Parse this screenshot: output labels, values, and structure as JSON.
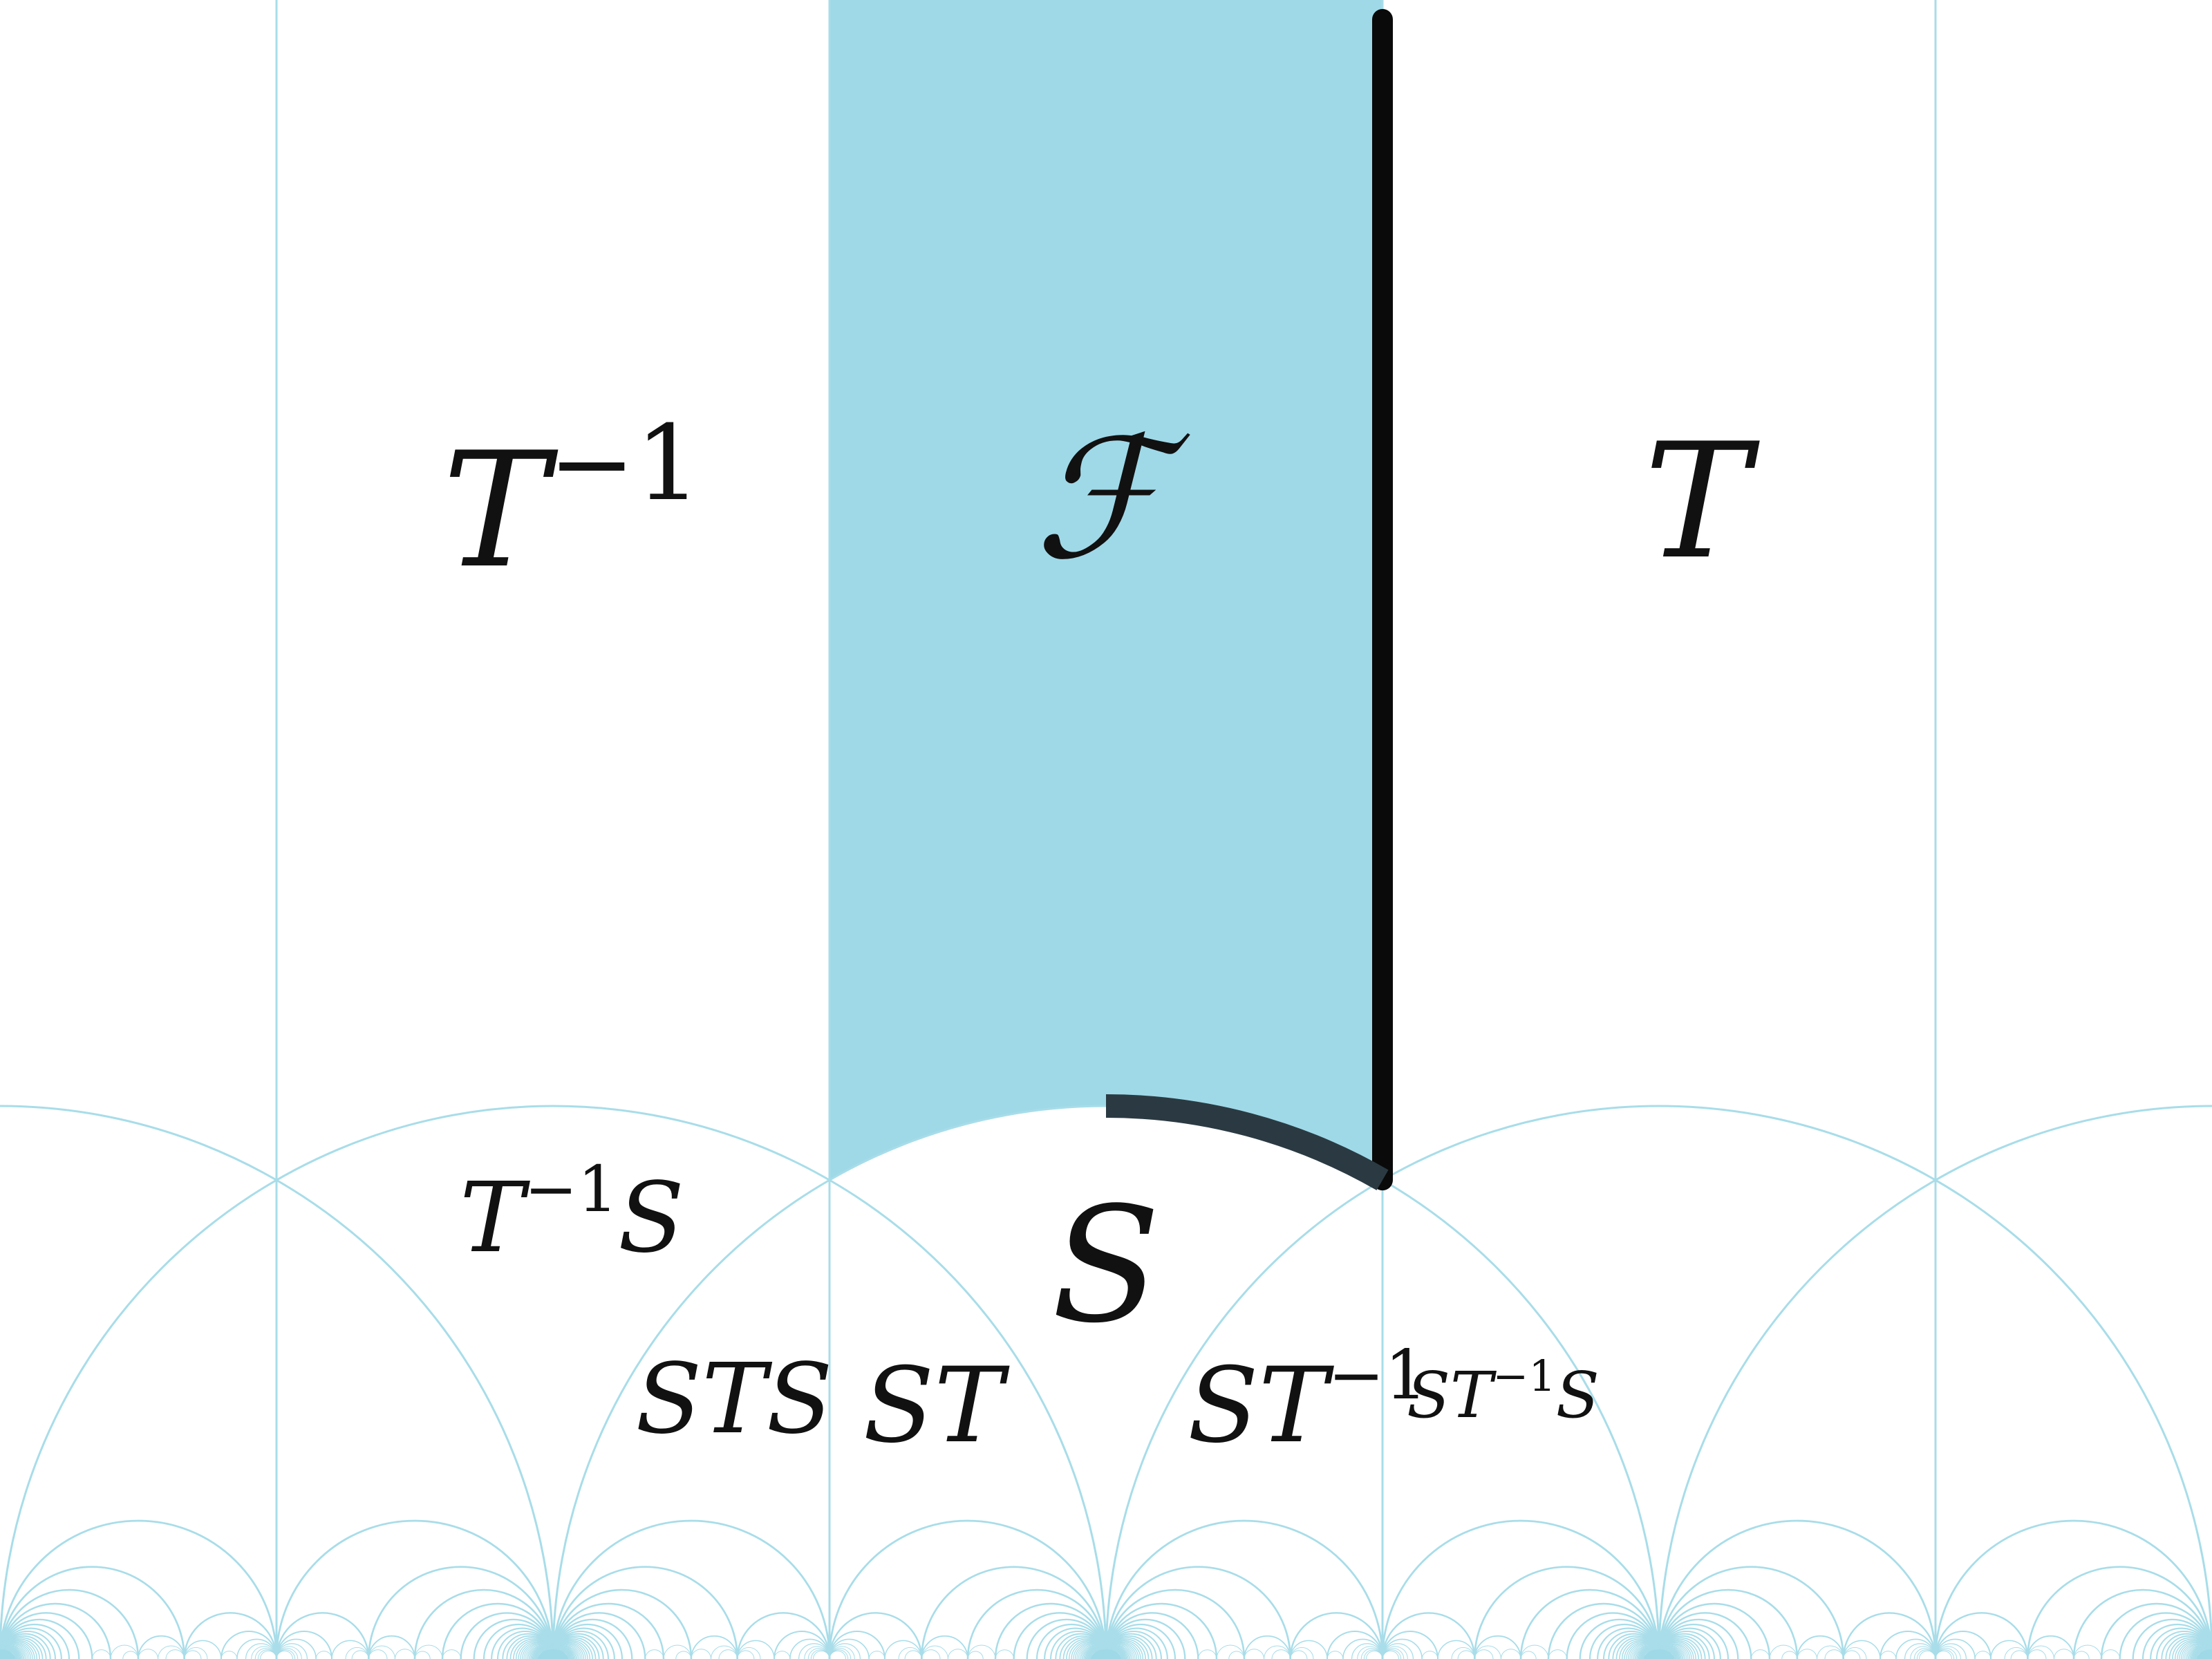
{
  "colors": {
    "tessellation_line": "#a8dde9",
    "fundamental_domain_fill": "#9fd9e8",
    "boundary_stroke": "#0a0a0a",
    "arc_stroke": "#2b3a42",
    "cusp_dot": "#9fd9e8"
  },
  "labels": {
    "t_inverse": {
      "base": "T",
      "sup": "−1"
    },
    "fundamental": "ℱ",
    "t": "T",
    "t_inverse_s": {
      "pre": "T",
      "sup": "−1",
      "post": "S"
    },
    "s": "S",
    "sts": "STS",
    "st": "ST",
    "st_inverse": {
      "base": "ST",
      "sup": "−1"
    },
    "st_inverse_s": {
      "pre": "ST",
      "sup": "−1",
      "post": "S"
    }
  }
}
